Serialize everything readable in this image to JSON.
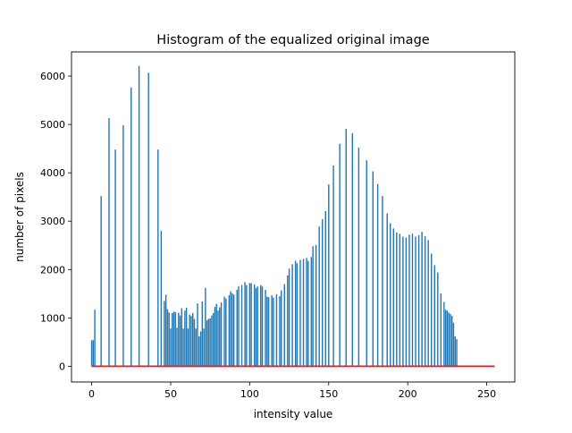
{
  "chart_data": {
    "type": "bar",
    "title": "Histogram of the equalized original image",
    "xlabel": "intensity value",
    "ylabel": "number of pixels",
    "xlim": [
      -12.75,
      267.75
    ],
    "ylim": [
      -325,
      6500
    ],
    "xticks": [
      0,
      50,
      100,
      150,
      200,
      250
    ],
    "yticks": [
      0,
      1000,
      2000,
      3000,
      4000,
      5000,
      6000
    ],
    "grid": false,
    "legend": "none",
    "bar_color": "#1f77b4",
    "baseline_color": "#d62728",
    "baseline": {
      "x": [
        0,
        255
      ],
      "y": 0
    },
    "bins": [
      [
        0,
        540
      ],
      [
        1,
        540
      ],
      [
        2,
        1170
      ],
      [
        6,
        3520
      ],
      [
        11,
        5130
      ],
      [
        15,
        4480
      ],
      [
        20,
        4980
      ],
      [
        25,
        5760
      ],
      [
        30,
        6210
      ],
      [
        36,
        6070
      ],
      [
        42,
        4480
      ],
      [
        44,
        2800
      ],
      [
        46,
        1350
      ],
      [
        47,
        1480
      ],
      [
        48,
        1180
      ],
      [
        49,
        1110
      ],
      [
        50,
        780
      ],
      [
        51,
        1100
      ],
      [
        52,
        1130
      ],
      [
        53,
        1120
      ],
      [
        54,
        800
      ],
      [
        55,
        1110
      ],
      [
        56,
        1050
      ],
      [
        57,
        1200
      ],
      [
        58,
        780
      ],
      [
        59,
        1150
      ],
      [
        60,
        1210
      ],
      [
        61,
        780
      ],
      [
        62,
        1070
      ],
      [
        63,
        1040
      ],
      [
        64,
        1100
      ],
      [
        65,
        980
      ],
      [
        66,
        780
      ],
      [
        67,
        1300
      ],
      [
        68,
        620
      ],
      [
        69,
        720
      ],
      [
        70,
        1340
      ],
      [
        71,
        780
      ],
      [
        72,
        1620
      ],
      [
        73,
        950
      ],
      [
        74,
        980
      ],
      [
        75,
        990
      ],
      [
        76,
        1050
      ],
      [
        77,
        1100
      ],
      [
        78,
        1230
      ],
      [
        79,
        1290
      ],
      [
        80,
        1150
      ],
      [
        81,
        1220
      ],
      [
        82,
        1320
      ],
      [
        84,
        1440
      ],
      [
        85,
        1400
      ],
      [
        87,
        1470
      ],
      [
        88,
        1550
      ],
      [
        89,
        1510
      ],
      [
        90,
        1480
      ],
      [
        92,
        1580
      ],
      [
        93,
        1650
      ],
      [
        95,
        1680
      ],
      [
        97,
        1740
      ],
      [
        98,
        1680
      ],
      [
        100,
        1720
      ],
      [
        101,
        1720
      ],
      [
        103,
        1690
      ],
      [
        104,
        1620
      ],
      [
        105,
        1650
      ],
      [
        107,
        1680
      ],
      [
        108,
        1650
      ],
      [
        110,
        1580
      ],
      [
        111,
        1440
      ],
      [
        112,
        1430
      ],
      [
        114,
        1470
      ],
      [
        115,
        1420
      ],
      [
        117,
        1490
      ],
      [
        119,
        1450
      ],
      [
        120,
        1570
      ],
      [
        122,
        1700
      ],
      [
        124,
        1880
      ],
      [
        125,
        2020
      ],
      [
        127,
        2110
      ],
      [
        129,
        2180
      ],
      [
        130,
        2130
      ],
      [
        132,
        2200
      ],
      [
        134,
        2220
      ],
      [
        136,
        2240
      ],
      [
        137,
        2180
      ],
      [
        139,
        2260
      ],
      [
        140,
        2480
      ],
      [
        142,
        2510
      ],
      [
        144,
        2890
      ],
      [
        146,
        3040
      ],
      [
        148,
        3210
      ],
      [
        150,
        3760
      ],
      [
        153,
        4150
      ],
      [
        157,
        4600
      ],
      [
        161,
        4910
      ],
      [
        165,
        4820
      ],
      [
        169,
        4520
      ],
      [
        174,
        4260
      ],
      [
        178,
        4030
      ],
      [
        181,
        3770
      ],
      [
        184,
        3520
      ],
      [
        187,
        3160
      ],
      [
        189,
        2960
      ],
      [
        191,
        2850
      ],
      [
        193,
        2770
      ],
      [
        195,
        2740
      ],
      [
        197,
        2680
      ],
      [
        199,
        2660
      ],
      [
        201,
        2720
      ],
      [
        203,
        2740
      ],
      [
        205,
        2680
      ],
      [
        207,
        2710
      ],
      [
        209,
        2780
      ],
      [
        211,
        2690
      ],
      [
        213,
        2610
      ],
      [
        215,
        2330
      ],
      [
        217,
        2090
      ],
      [
        219,
        1940
      ],
      [
        221,
        1510
      ],
      [
        223,
        1330
      ],
      [
        224,
        1170
      ],
      [
        225,
        1150
      ],
      [
        226,
        1110
      ],
      [
        227,
        1080
      ],
      [
        228,
        1040
      ],
      [
        229,
        900
      ],
      [
        230,
        620
      ],
      [
        231,
        560
      ]
    ]
  }
}
